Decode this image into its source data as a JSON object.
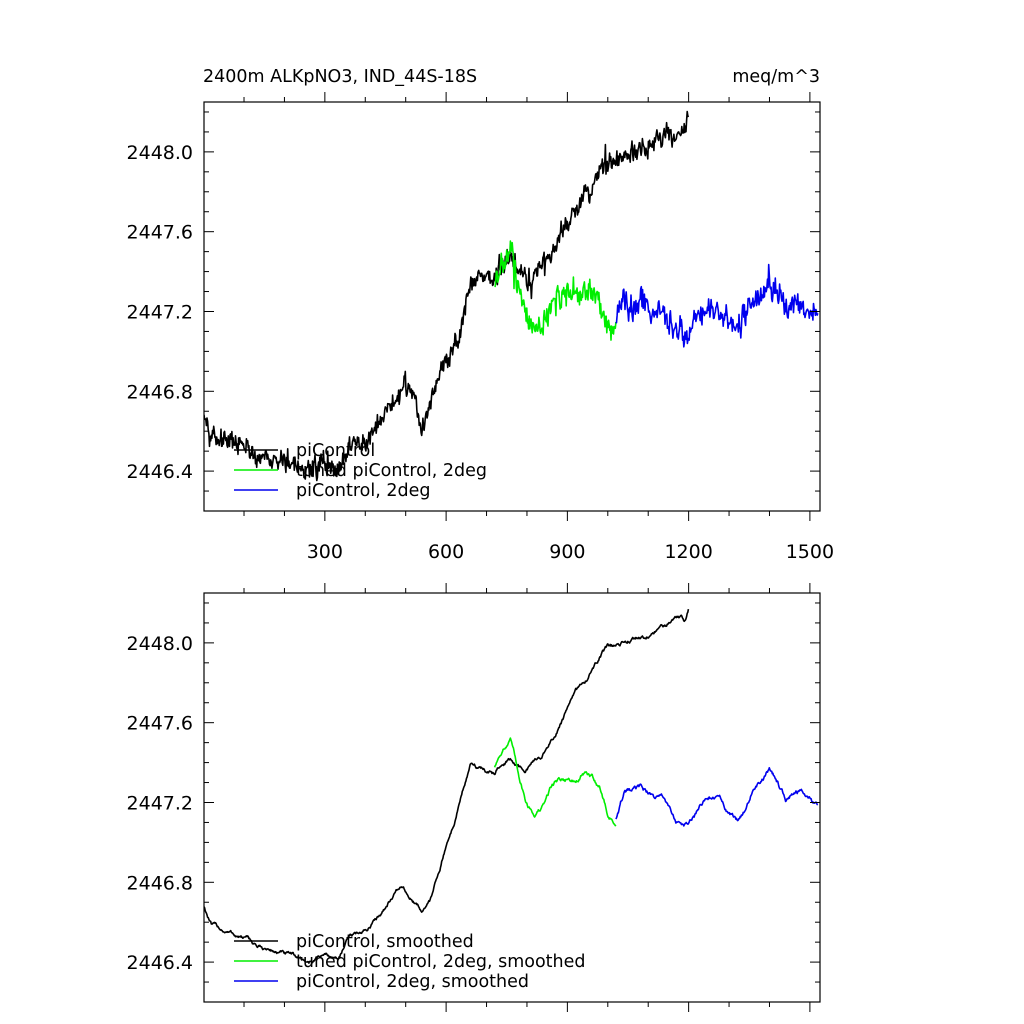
{
  "figure": {
    "title_left": "2400m ALKpNO3, IND_44S-18S",
    "title_right": "meq/m^3"
  },
  "colors": {
    "piControl": "#000000",
    "tunedPiControl2deg": "#00ee00",
    "piControl2deg": "#0000ee"
  },
  "chart_data": [
    {
      "id": "raw",
      "type": "line",
      "title": "2400m ALKpNO3, IND_44S-18S",
      "units": "meq/m^3",
      "xlim": [
        1,
        1525
      ],
      "ylim": [
        2446.2,
        2448.25
      ],
      "x_ticks": [
        300,
        600,
        900,
        1200,
        1500
      ],
      "y_ticks": [
        2446.4,
        2446.8,
        2447.2,
        2447.6,
        2448.0
      ],
      "grid": false,
      "legend_placement": "bottom-left",
      "series": [
        {
          "name": "piControl",
          "color": "#000000",
          "anchors": [
            [
              1,
              2446.72
            ],
            [
              20,
              2446.58
            ],
            [
              60,
              2446.55
            ],
            [
              100,
              2446.52
            ],
            [
              140,
              2446.47
            ],
            [
              180,
              2446.45
            ],
            [
              220,
              2446.42
            ],
            [
              260,
              2446.4
            ],
            [
              300,
              2446.45
            ],
            [
              330,
              2446.4
            ],
            [
              360,
              2446.52
            ],
            [
              400,
              2446.55
            ],
            [
              430,
              2446.62
            ],
            [
              460,
              2446.72
            ],
            [
              490,
              2446.82
            ],
            [
              520,
              2446.82
            ],
            [
              540,
              2446.6
            ],
            [
              560,
              2446.75
            ],
            [
              590,
              2446.92
            ],
            [
              620,
              2447.02
            ],
            [
              640,
              2447.12
            ],
            [
              660,
              2447.32
            ],
            [
              680,
              2447.4
            ],
            [
              700,
              2447.38
            ],
            [
              720,
              2447.34
            ],
            [
              740,
              2447.43
            ],
            [
              760,
              2447.45
            ],
            [
              780,
              2447.38
            ],
            [
              800,
              2447.36
            ],
            [
              830,
              2447.4
            ],
            [
              860,
              2447.48
            ],
            [
              880,
              2447.58
            ],
            [
              900,
              2447.65
            ],
            [
              920,
              2447.72
            ],
            [
              940,
              2447.75
            ],
            [
              960,
              2447.82
            ],
            [
              980,
              2447.9
            ],
            [
              1000,
              2447.96
            ],
            [
              1030,
              2447.95
            ],
            [
              1060,
              2448.0
            ],
            [
              1090,
              2448.03
            ],
            [
              1120,
              2448.05
            ],
            [
              1150,
              2448.08
            ],
            [
              1170,
              2448.1
            ],
            [
              1180,
              2448.12
            ],
            [
              1190,
              2448.1
            ],
            [
              1200,
              2448.18
            ]
          ],
          "noise": 0.06
        },
        {
          "name": "tuned piControl, 2deg",
          "color": "#00ee00",
          "anchors": [
            [
              720,
              2447.32
            ],
            [
              740,
              2447.45
            ],
            [
              760,
              2447.5
            ],
            [
              780,
              2447.32
            ],
            [
              800,
              2447.18
            ],
            [
              820,
              2447.12
            ],
            [
              840,
              2447.15
            ],
            [
              860,
              2447.22
            ],
            [
              880,
              2447.28
            ],
            [
              900,
              2447.3
            ],
            [
              920,
              2447.26
            ],
            [
              940,
              2447.3
            ],
            [
              960,
              2447.28
            ],
            [
              980,
              2447.25
            ],
            [
              1000,
              2447.15
            ],
            [
              1020,
              2447.1
            ]
          ],
          "noise": 0.07
        },
        {
          "name": "piControl, 2deg",
          "color": "#0000ee",
          "anchors": [
            [
              1020,
              2447.15
            ],
            [
              1040,
              2447.25
            ],
            [
              1060,
              2447.22
            ],
            [
              1080,
              2447.26
            ],
            [
              1100,
              2447.22
            ],
            [
              1120,
              2447.2
            ],
            [
              1140,
              2447.22
            ],
            [
              1160,
              2447.12
            ],
            [
              1180,
              2447.1
            ],
            [
              1200,
              2447.1
            ],
            [
              1220,
              2447.18
            ],
            [
              1240,
              2447.2
            ],
            [
              1260,
              2447.2
            ],
            [
              1280,
              2447.18
            ],
            [
              1300,
              2447.14
            ],
            [
              1320,
              2447.1
            ],
            [
              1340,
              2447.18
            ],
            [
              1360,
              2447.26
            ],
            [
              1380,
              2447.3
            ],
            [
              1400,
              2447.32
            ],
            [
              1420,
              2447.3
            ],
            [
              1440,
              2447.22
            ],
            [
              1460,
              2447.25
            ],
            [
              1480,
              2447.24
            ],
            [
              1500,
              2447.2
            ],
            [
              1520,
              2447.15
            ]
          ],
          "noise": 0.07
        }
      ]
    },
    {
      "id": "smoothed",
      "type": "line",
      "xlim": [
        1,
        1525
      ],
      "ylim": [
        2446.2,
        2448.25
      ],
      "x_ticks": [
        300,
        600,
        900,
        1200,
        1500
      ],
      "y_ticks": [
        2446.4,
        2446.8,
        2447.2,
        2447.6,
        2448.0
      ],
      "grid": false,
      "legend_placement": "bottom-left",
      "series": [
        {
          "name": "piControl, smoothed",
          "color": "#000000",
          "anchors": [
            [
              1,
              2446.68
            ],
            [
              20,
              2446.58
            ],
            [
              60,
              2446.55
            ],
            [
              100,
              2446.52
            ],
            [
              140,
              2446.47
            ],
            [
              180,
              2446.45
            ],
            [
              220,
              2446.42
            ],
            [
              260,
              2446.4
            ],
            [
              300,
              2446.44
            ],
            [
              330,
              2446.42
            ],
            [
              360,
              2446.52
            ],
            [
              400,
              2446.55
            ],
            [
              430,
              2446.62
            ],
            [
              460,
              2446.72
            ],
            [
              490,
              2446.78
            ],
            [
              520,
              2446.7
            ],
            [
              540,
              2446.66
            ],
            [
              560,
              2446.7
            ],
            [
              590,
              2446.92
            ],
            [
              620,
              2447.1
            ],
            [
              640,
              2447.26
            ],
            [
              660,
              2447.38
            ],
            [
              680,
              2447.38
            ],
            [
              700,
              2447.36
            ],
            [
              720,
              2447.34
            ],
            [
              740,
              2447.42
            ],
            [
              760,
              2447.42
            ],
            [
              780,
              2447.38
            ],
            [
              800,
              2447.38
            ],
            [
              830,
              2447.42
            ],
            [
              860,
              2447.5
            ],
            [
              880,
              2447.58
            ],
            [
              900,
              2447.66
            ],
            [
              920,
              2447.74
            ],
            [
              940,
              2447.8
            ],
            [
              960,
              2447.86
            ],
            [
              980,
              2447.93
            ],
            [
              1000,
              2447.98
            ],
            [
              1030,
              2447.98
            ],
            [
              1060,
              2448.02
            ],
            [
              1090,
              2448.02
            ],
            [
              1120,
              2448.06
            ],
            [
              1150,
              2448.1
            ],
            [
              1170,
              2448.14
            ],
            [
              1180,
              2448.14
            ],
            [
              1190,
              2448.12
            ],
            [
              1200,
              2448.18
            ]
          ],
          "noise": 0.025
        },
        {
          "name": "tuned piControl, 2deg, smoothed",
          "color": "#00ee00",
          "anchors": [
            [
              720,
              2447.38
            ],
            [
              740,
              2447.48
            ],
            [
              760,
              2447.5
            ],
            [
              780,
              2447.34
            ],
            [
              800,
              2447.2
            ],
            [
              820,
              2447.15
            ],
            [
              840,
              2447.18
            ],
            [
              860,
              2447.28
            ],
            [
              880,
              2447.32
            ],
            [
              900,
              2447.32
            ],
            [
              920,
              2447.3
            ],
            [
              940,
              2447.34
            ],
            [
              960,
              2447.32
            ],
            [
              980,
              2447.28
            ],
            [
              1000,
              2447.14
            ],
            [
              1020,
              2447.1
            ]
          ],
          "noise": 0.03
        },
        {
          "name": "piControl, 2deg, smoothed",
          "color": "#0000ee",
          "anchors": [
            [
              1020,
              2447.12
            ],
            [
              1040,
              2447.24
            ],
            [
              1060,
              2447.24
            ],
            [
              1080,
              2447.26
            ],
            [
              1100,
              2447.24
            ],
            [
              1120,
              2447.22
            ],
            [
              1140,
              2447.22
            ],
            [
              1160,
              2447.12
            ],
            [
              1180,
              2447.08
            ],
            [
              1200,
              2447.08
            ],
            [
              1220,
              2447.14
            ],
            [
              1240,
              2447.2
            ],
            [
              1260,
              2447.22
            ],
            [
              1280,
              2447.2
            ],
            [
              1300,
              2447.14
            ],
            [
              1320,
              2447.1
            ],
            [
              1340,
              2447.18
            ],
            [
              1360,
              2447.28
            ],
            [
              1380,
              2447.32
            ],
            [
              1400,
              2447.36
            ],
            [
              1420,
              2447.3
            ],
            [
              1440,
              2447.22
            ],
            [
              1460,
              2447.26
            ],
            [
              1480,
              2447.26
            ],
            [
              1500,
              2447.22
            ],
            [
              1520,
              2447.16
            ]
          ],
          "noise": 0.03
        }
      ]
    }
  ]
}
